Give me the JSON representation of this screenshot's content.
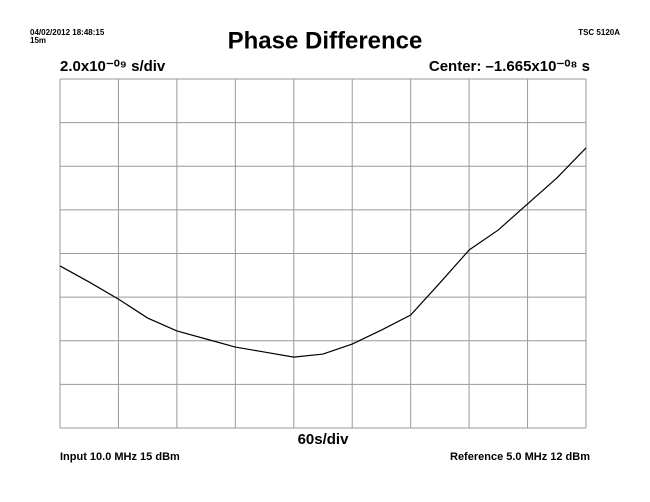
{
  "chart_data": {
    "type": "line",
    "title": "Phase Difference",
    "timestamp": "04/02/2012 18:48:15",
    "duration": "15m",
    "instrument": "TSC 5120A",
    "y_scale_label": "2.0x10⁻⁰⁹ s/div",
    "center_label": "Center: –1.665x10⁻⁰⁸ s",
    "x_scale_label": "60s/div",
    "input_label": "Input 10.0 MHz 15 dBm",
    "reference_label": "Reference 5.0 MHz 12 dBm",
    "x": [
      0,
      30,
      60,
      90,
      120,
      150,
      180,
      210,
      240,
      270,
      300,
      330,
      360,
      390,
      420,
      450,
      480,
      510,
      540
    ],
    "series": [
      {
        "color": "#000000",
        "values": [
          -1.722e-08,
          -1.796e-08,
          -1.874e-08,
          -1.961e-08,
          -2.02e-08,
          -2.057e-08,
          -2.094e-08,
          -2.117e-08,
          -2.14e-08,
          -2.126e-08,
          -2.08e-08,
          -2.016e-08,
          -1.947e-08,
          -1.8e-08,
          -1.649e-08,
          -1.557e-08,
          -1.438e-08,
          -1.319e-08,
          -1.181e-08
        ]
      }
    ],
    "xlim": [
      0,
      540
    ],
    "xticks": [
      0,
      60,
      120,
      180,
      240,
      300,
      360,
      420,
      480,
      540
    ],
    "ylim": [
      -2.465e-08,
      -8.65e-09
    ],
    "yticks": [
      -2.465e-08,
      -2.265e-08,
      -2.065e-08,
      -1.865e-08,
      -1.665e-08,
      -1.465e-08,
      -1.265e-08,
      -1.065e-08,
      -8.65e-09
    ],
    "grid": true
  }
}
